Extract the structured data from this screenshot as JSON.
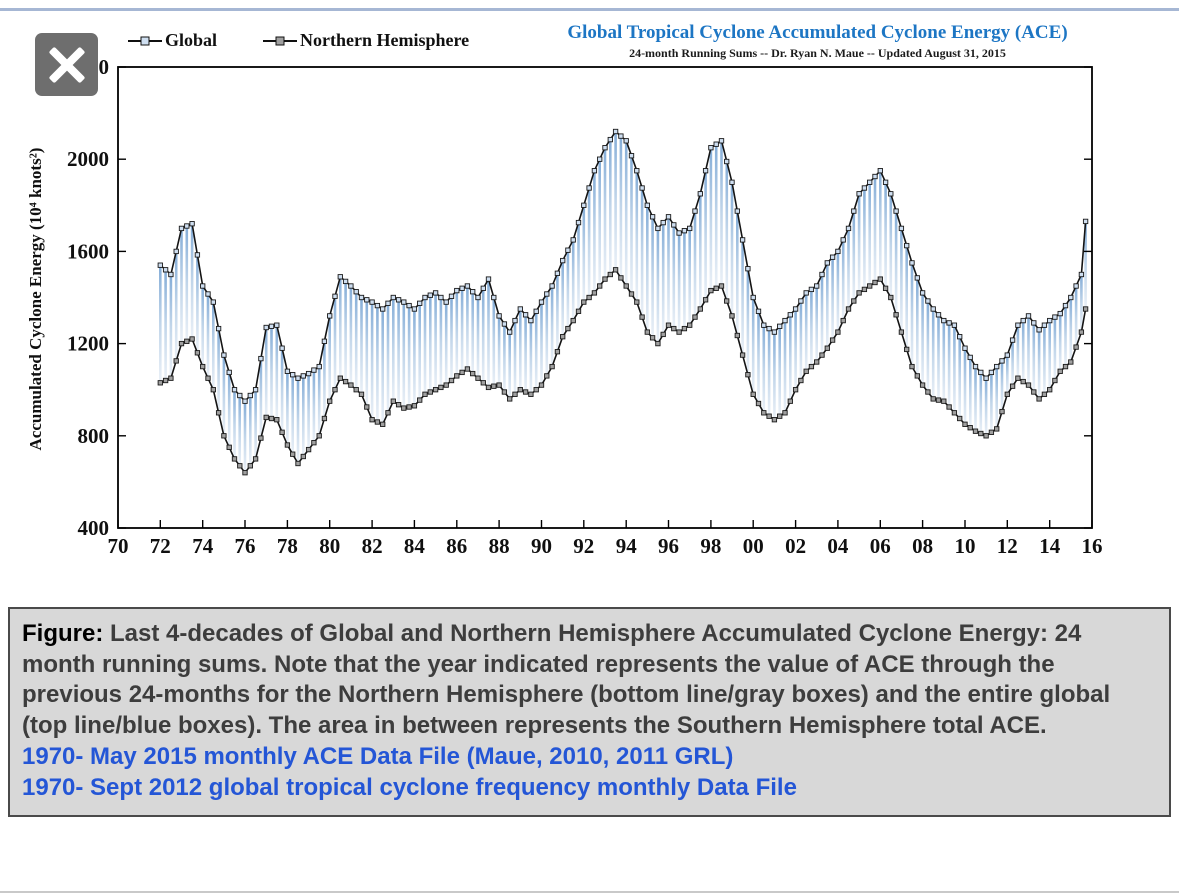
{
  "page": {
    "close_label": "close"
  },
  "chart": {
    "title": "Global Tropical Cyclone Accumulated Cyclone Energy (ACE)",
    "subtitle": "24-month Running Sums -- Dr. Ryan N. Maue -- Updated August 31, 2015",
    "y_axis_title": "Accumulated Cyclone Energy (10⁴ knots²)",
    "legend": [
      {
        "label": "Global",
        "marker_fill": "#cfdff1"
      },
      {
        "label": "Northern Hemisphere",
        "marker_fill": "#a0a0a0"
      }
    ],
    "x_ticks": [
      "70",
      "72",
      "74",
      "76",
      "78",
      "80",
      "82",
      "84",
      "86",
      "88",
      "90",
      "92",
      "94",
      "96",
      "98",
      "00",
      "02",
      "04",
      "06",
      "08",
      "10",
      "12",
      "14",
      "16"
    ],
    "y_ticks": [
      400,
      800,
      1200,
      1600,
      2000,
      2400
    ],
    "colors": {
      "title": "#1d76c4",
      "line": "#141414",
      "global_marker": "#cfdff1",
      "nh_marker": "#a0a0a0",
      "hatch_top": "#86aed8",
      "hatch_mid": "#c2d6ea",
      "hatch_bottom": "#eaf0f7",
      "link": "#2456d6",
      "caption_bg": "#d8d8d8"
    }
  },
  "chart_data": {
    "type": "line",
    "title": "Global Tropical Cyclone Accumulated Cyclone Energy (ACE)",
    "subtitle": "24-month Running Sums -- Dr. Ryan N. Maue -- Updated August 31, 2015",
    "ylabel": "Accumulated Cyclone Energy (10⁴ knots²)",
    "xlabel": "",
    "xlim": [
      1970,
      2016
    ],
    "ylim": [
      400,
      2400
    ],
    "grid": false,
    "legend_position": "top-left",
    "x": [
      1972,
      1972.5,
      1973,
      1973.5,
      1974,
      1974.5,
      1975,
      1975.5,
      1976,
      1976.5,
      1977,
      1977.5,
      1978,
      1978.5,
      1979,
      1979.5,
      1980,
      1980.5,
      1981,
      1981.5,
      1982,
      1982.5,
      1983,
      1983.5,
      1984,
      1984.5,
      1985,
      1985.5,
      1986,
      1986.5,
      1987,
      1987.5,
      1988,
      1988.5,
      1989,
      1989.5,
      1990,
      1990.5,
      1991,
      1991.5,
      1992,
      1992.5,
      1993,
      1993.5,
      1994,
      1994.5,
      1995,
      1995.5,
      1996,
      1996.5,
      1997,
      1997.5,
      1998,
      1998.5,
      1999,
      1999.5,
      2000,
      2000.5,
      2001,
      2001.5,
      2002,
      2002.5,
      2003,
      2003.5,
      2004,
      2004.5,
      2005,
      2005.5,
      2006,
      2006.5,
      2007,
      2007.5,
      2008,
      2008.5,
      2009,
      2009.5,
      2010,
      2010.5,
      2011,
      2011.5,
      2012,
      2012.5,
      2013,
      2013.5,
      2014,
      2014.5,
      2015,
      2015.5,
      2015.7
    ],
    "series": [
      {
        "name": "Global",
        "values": [
          1540,
          1500,
          1700,
          1720,
          1450,
          1380,
          1150,
          1000,
          950,
          1000,
          1270,
          1280,
          1080,
          1050,
          1070,
          1100,
          1320,
          1490,
          1450,
          1400,
          1380,
          1350,
          1400,
          1380,
          1350,
          1400,
          1420,
          1380,
          1430,
          1450,
          1400,
          1480,
          1320,
          1250,
          1350,
          1300,
          1380,
          1450,
          1560,
          1650,
          1800,
          1950,
          2050,
          2120,
          2080,
          1950,
          1800,
          1700,
          1750,
          1680,
          1700,
          1850,
          2050,
          2080,
          1900,
          1650,
          1400,
          1280,
          1250,
          1300,
          1350,
          1420,
          1450,
          1550,
          1600,
          1700,
          1850,
          1900,
          1950,
          1850,
          1700,
          1550,
          1420,
          1350,
          1300,
          1280,
          1180,
          1100,
          1050,
          1100,
          1150,
          1280,
          1320,
          1260,
          1300,
          1330,
          1400,
          1500,
          1730
        ]
      },
      {
        "name": "Northern Hemisphere",
        "values": [
          1030,
          1050,
          1200,
          1220,
          1100,
          1000,
          800,
          700,
          640,
          700,
          880,
          870,
          760,
          680,
          740,
          800,
          950,
          1050,
          1020,
          980,
          870,
          850,
          950,
          920,
          930,
          980,
          1000,
          1020,
          1060,
          1090,
          1050,
          1010,
          1020,
          960,
          1000,
          980,
          1020,
          1100,
          1230,
          1300,
          1380,
          1420,
          1480,
          1520,
          1450,
          1380,
          1250,
          1200,
          1280,
          1250,
          1280,
          1350,
          1430,
          1450,
          1320,
          1150,
          980,
          900,
          870,
          900,
          1000,
          1080,
          1120,
          1180,
          1250,
          1350,
          1420,
          1450,
          1480,
          1400,
          1250,
          1100,
          1020,
          960,
          950,
          900,
          850,
          820,
          800,
          830,
          980,
          1050,
          1020,
          960,
          1000,
          1080,
          1120,
          1250,
          1350
        ]
      }
    ]
  },
  "caption": {
    "label": "Figure:",
    "text": " Last 4-decades of Global and Northern Hemisphere Accumulated Cyclone Energy: 24 month running sums. Note that the year indicated represents the value of ACE through the previous 24-months for the Northern Hemisphere (bottom line/gray boxes) and the entire global (top line/blue boxes). The area in between represents the Southern Hemisphere total ACE.",
    "links": [
      "1970- May 2015 monthly ACE Data File (Maue, 2010, 2011 GRL)",
      "1970- Sept 2012 global tropical cyclone frequency monthly Data File"
    ]
  }
}
